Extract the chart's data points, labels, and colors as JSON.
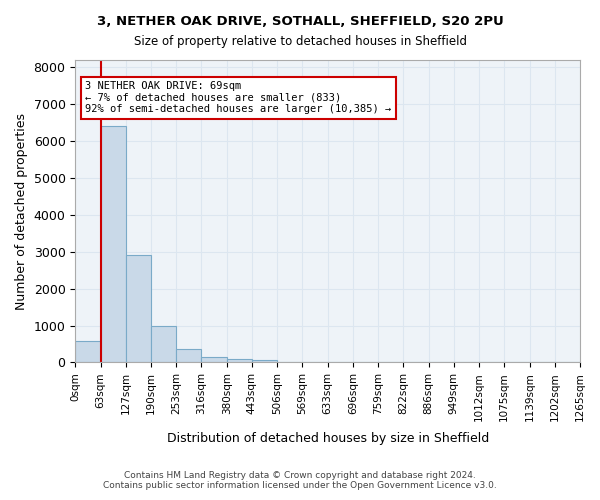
{
  "title1": "3, NETHER OAK DRIVE, SOTHALL, SHEFFIELD, S20 2PU",
  "title2": "Size of property relative to detached houses in Sheffield",
  "xlabel": "Distribution of detached houses by size in Sheffield",
  "ylabel": "Number of detached properties",
  "bin_labels": [
    "0sqm",
    "63sqm",
    "127sqm",
    "190sqm",
    "253sqm",
    "316sqm",
    "380sqm",
    "443sqm",
    "506sqm",
    "569sqm",
    "633sqm",
    "696sqm",
    "759sqm",
    "822sqm",
    "886sqm",
    "949sqm",
    "1012sqm",
    "1075sqm",
    "1139sqm",
    "1202sqm",
    "1265sqm"
  ],
  "bar_heights": [
    580,
    6400,
    2920,
    975,
    360,
    155,
    95,
    55,
    0,
    0,
    0,
    0,
    0,
    0,
    0,
    0,
    0,
    0,
    0,
    0
  ],
  "bar_color": "#c9d9e8",
  "bar_edge_color": "#7aaac8",
  "property_line_x": 1,
  "property_line_label": "3 NETHER OAK DRIVE: 69sqm",
  "annotation_line1": "3 NETHER OAK DRIVE: 69sqm",
  "annotation_line2": "← 7% of detached houses are smaller (833)",
  "annotation_line3": "92% of semi-detached houses are larger (10,385) →",
  "annotation_box_color": "#cc0000",
  "property_line_color": "#cc0000",
  "grid_color": "#dce6f0",
  "background_color": "#eef3f8",
  "ylim": [
    0,
    8200
  ],
  "yticks": [
    0,
    1000,
    2000,
    3000,
    4000,
    5000,
    6000,
    7000,
    8000
  ],
  "footer_line1": "Contains HM Land Registry data © Crown copyright and database right 2024.",
  "footer_line2": "Contains public sector information licensed under the Open Government Licence v3.0."
}
